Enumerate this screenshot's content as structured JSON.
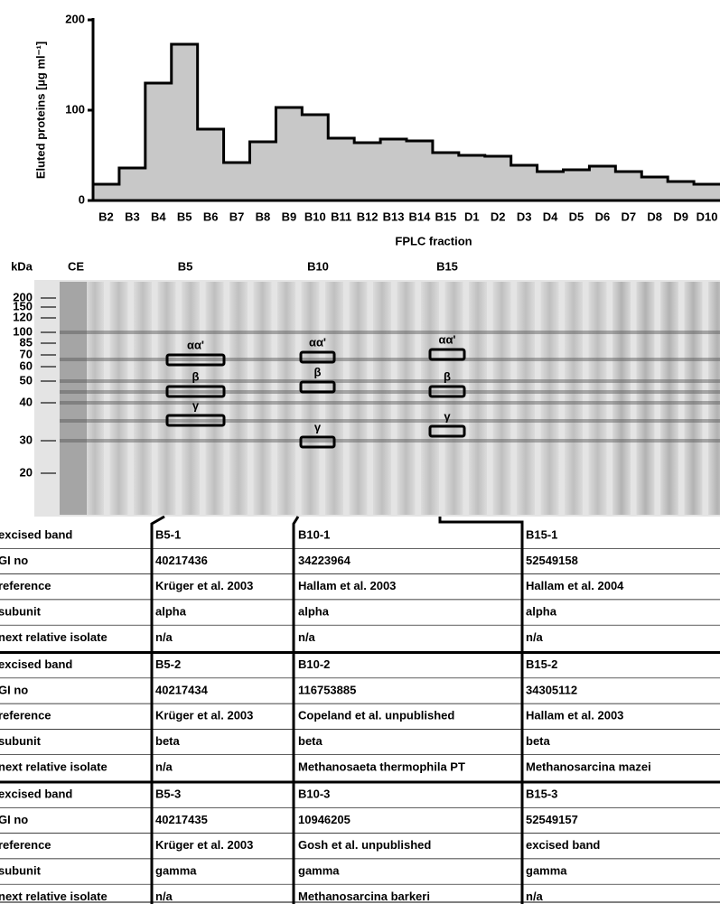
{
  "chart_data": {
    "type": "step",
    "ylabel": "Eluted proteins [µg ml⁻¹]",
    "xlabel": "FPLC fraction",
    "categories": [
      "B2",
      "B3",
      "B4",
      "B5",
      "B6",
      "B7",
      "B8",
      "B9",
      "B10",
      "B11",
      "B12",
      "B13",
      "B14",
      "B15",
      "D1",
      "D2",
      "D3",
      "D4",
      "D5",
      "D6",
      "D7",
      "D8",
      "D9",
      "D10"
    ],
    "values": [
      18,
      36,
      130,
      173,
      79,
      42,
      65,
      103,
      95,
      69,
      64,
      68,
      66,
      53,
      50,
      49,
      39,
      32,
      34,
      38,
      32,
      26,
      21,
      18
    ],
    "color": "#c8c8c8",
    "ylim": [
      0,
      200
    ],
    "yticks": [
      0,
      100,
      200
    ]
  },
  "gel": {
    "headers": [
      "kDa",
      "CE",
      "B5",
      "B10",
      "B15"
    ],
    "markers": [
      "200",
      "150",
      "120",
      "100",
      "85",
      "70",
      "60",
      "50",
      "40",
      "30",
      "20"
    ],
    "band_labels": [
      [
        "αα'",
        "β",
        "γ"
      ],
      [
        "αα'",
        "β",
        "γ"
      ],
      [
        "αα'",
        "β",
        "γ"
      ]
    ]
  },
  "table": {
    "groups": [
      [
        [
          "excised band",
          "B5-1",
          "B10-1",
          "B15-1"
        ],
        [
          "GI no",
          "40217436",
          "34223964",
          "52549158"
        ],
        [
          "reference",
          "Krüger et al. 2003",
          "Hallam et al. 2003",
          "Hallam et al. 2004"
        ],
        [
          "subunit",
          "alpha",
          "alpha",
          "alpha"
        ],
        [
          "next relative isolate",
          "n/a",
          "n/a",
          "n/a"
        ]
      ],
      [
        [
          "excised band",
          "B5-2",
          "B10-2",
          "B15-2"
        ],
        [
          "GI no",
          "40217434",
          "116753885",
          "34305112"
        ],
        [
          "reference",
          "Krüger et al. 2003",
          "Copeland et al. unpublished",
          "Hallam et al. 2003"
        ],
        [
          "subunit",
          "beta",
          "beta",
          "beta"
        ],
        [
          "next relative isolate",
          "n/a",
          "Methanosaeta thermophila PT",
          "Methanosarcina mazei"
        ]
      ],
      [
        [
          "excised band",
          "B5-3",
          "B10-3",
          "B15-3"
        ],
        [
          "GI no",
          "40217435",
          "10946205",
          "52549157"
        ],
        [
          "reference",
          "Krüger et al. 2003",
          "Gosh et al. unpublished",
          "excised band"
        ],
        [
          "subunit",
          "gamma",
          "gamma",
          "gamma"
        ],
        [
          "next relative isolate",
          "n/a",
          "Methanosarcina barkeri",
          "n/a"
        ]
      ]
    ]
  }
}
